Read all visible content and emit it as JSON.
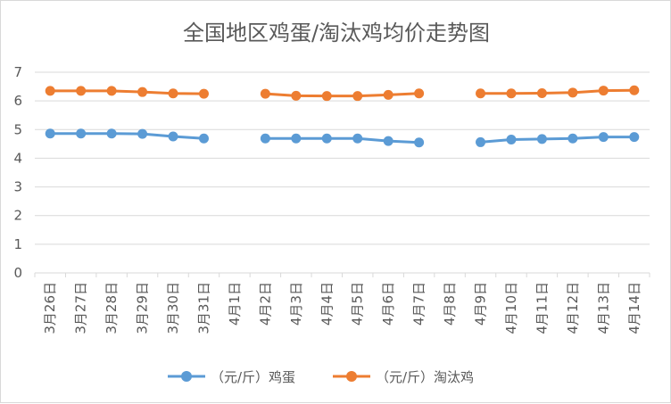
{
  "chart_data": {
    "type": "line",
    "title": "全国地区鸡蛋/淘汰鸡均价走势图",
    "categories": [
      "3月26日",
      "3月27日",
      "3月28日",
      "3月29日",
      "3月30日",
      "3月31日",
      "4月1日",
      "4月2日",
      "4月3日",
      "4月4日",
      "4月5日",
      "4月6日",
      "4月7日",
      "4月8日",
      "4月9日",
      "4月10日",
      "4月11日",
      "4月12日",
      "4月13日",
      "4月14日"
    ],
    "series": [
      {
        "name": "（元/斤）鸡蛋",
        "color": "#5b9bd5",
        "values": [
          4.86,
          4.86,
          4.86,
          4.85,
          4.76,
          4.69,
          null,
          4.69,
          4.69,
          4.69,
          4.69,
          4.6,
          4.55,
          null,
          4.56,
          4.65,
          4.67,
          4.69,
          4.74,
          4.74
        ]
      },
      {
        "name": "（元/斤）淘汰鸡",
        "color": "#ed7d31",
        "values": [
          6.35,
          6.35,
          6.35,
          6.31,
          6.26,
          6.25,
          null,
          6.25,
          6.18,
          6.17,
          6.17,
          6.21,
          6.26,
          null,
          6.26,
          6.26,
          6.27,
          6.29,
          6.36,
          6.37
        ]
      }
    ],
    "ylim": [
      0,
      7
    ],
    "yticks": [
      "0",
      "1",
      "2",
      "3",
      "4",
      "5",
      "6",
      "7"
    ],
    "grid": true,
    "legend_position": "bottom"
  }
}
